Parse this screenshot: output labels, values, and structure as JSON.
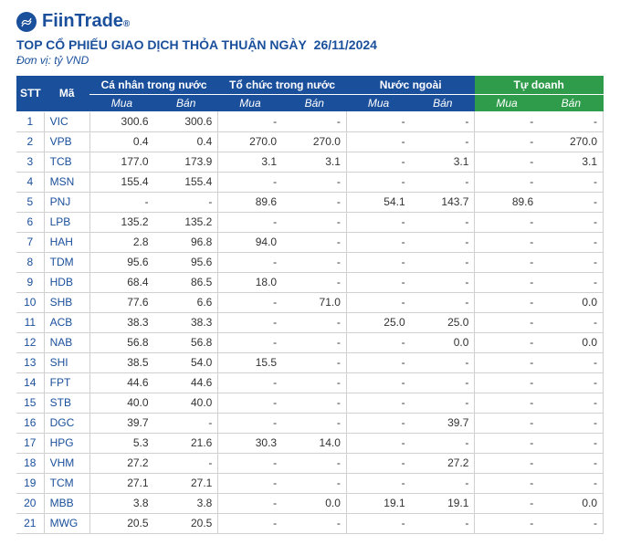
{
  "brand": {
    "name": "FiinTrade",
    "mark_color": "#1a4f9c"
  },
  "title_prefix": "TOP CỔ PHIẾU GIAO DỊCH THỎA THUẬN NGÀY",
  "date": "26/11/2024",
  "unit_label": "Đơn vị: tỷ VND",
  "colors": {
    "header_blue": "#1a4f9c",
    "header_green": "#2e9c4a",
    "row_border": "#d0d0d0",
    "text": "#333333"
  },
  "header": {
    "stt": "STT",
    "code": "Mã",
    "groups": [
      {
        "label": "Cá nhân trong nước",
        "bg": "blue"
      },
      {
        "label": "Tổ chức trong nước",
        "bg": "blue"
      },
      {
        "label": "Nước ngoài",
        "bg": "blue"
      },
      {
        "label": "Tự doanh",
        "bg": "green"
      }
    ],
    "sub_mua": "Mua",
    "sub_ban": "Bán"
  },
  "rows": [
    {
      "stt": 1,
      "code": "VIC",
      "v": [
        "300.6",
        "300.6",
        "-",
        "-",
        "-",
        "-",
        "-",
        "-"
      ]
    },
    {
      "stt": 2,
      "code": "VPB",
      "v": [
        "0.4",
        "0.4",
        "270.0",
        "270.0",
        "-",
        "-",
        "-",
        "270.0"
      ]
    },
    {
      "stt": 3,
      "code": "TCB",
      "v": [
        "177.0",
        "173.9",
        "3.1",
        "3.1",
        "-",
        "3.1",
        "-",
        "3.1"
      ]
    },
    {
      "stt": 4,
      "code": "MSN",
      "v": [
        "155.4",
        "155.4",
        "-",
        "-",
        "-",
        "-",
        "-",
        "-"
      ]
    },
    {
      "stt": 5,
      "code": "PNJ",
      "v": [
        "-",
        "-",
        "89.6",
        "-",
        "54.1",
        "143.7",
        "89.6",
        "-"
      ]
    },
    {
      "stt": 6,
      "code": "LPB",
      "v": [
        "135.2",
        "135.2",
        "-",
        "-",
        "-",
        "-",
        "-",
        "-"
      ]
    },
    {
      "stt": 7,
      "code": "HAH",
      "v": [
        "2.8",
        "96.8",
        "94.0",
        "-",
        "-",
        "-",
        "-",
        "-"
      ]
    },
    {
      "stt": 8,
      "code": "TDM",
      "v": [
        "95.6",
        "95.6",
        "-",
        "-",
        "-",
        "-",
        "-",
        "-"
      ]
    },
    {
      "stt": 9,
      "code": "HDB",
      "v": [
        "68.4",
        "86.5",
        "18.0",
        "-",
        "-",
        "-",
        "-",
        "-"
      ]
    },
    {
      "stt": 10,
      "code": "SHB",
      "v": [
        "77.6",
        "6.6",
        "-",
        "71.0",
        "-",
        "-",
        "-",
        "0.0"
      ]
    },
    {
      "stt": 11,
      "code": "ACB",
      "v": [
        "38.3",
        "38.3",
        "-",
        "-",
        "25.0",
        "25.0",
        "-",
        "-"
      ]
    },
    {
      "stt": 12,
      "code": "NAB",
      "v": [
        "56.8",
        "56.8",
        "-",
        "-",
        "-",
        "0.0",
        "-",
        "0.0"
      ]
    },
    {
      "stt": 13,
      "code": "SHI",
      "v": [
        "38.5",
        "54.0",
        "15.5",
        "-",
        "-",
        "-",
        "-",
        "-"
      ]
    },
    {
      "stt": 14,
      "code": "FPT",
      "v": [
        "44.6",
        "44.6",
        "-",
        "-",
        "-",
        "-",
        "-",
        "-"
      ]
    },
    {
      "stt": 15,
      "code": "STB",
      "v": [
        "40.0",
        "40.0",
        "-",
        "-",
        "-",
        "-",
        "-",
        "-"
      ]
    },
    {
      "stt": 16,
      "code": "DGC",
      "v": [
        "39.7",
        "-",
        "-",
        "-",
        "-",
        "39.7",
        "-",
        "-"
      ]
    },
    {
      "stt": 17,
      "code": "HPG",
      "v": [
        "5.3",
        "21.6",
        "30.3",
        "14.0",
        "-",
        "-",
        "-",
        "-"
      ]
    },
    {
      "stt": 18,
      "code": "VHM",
      "v": [
        "27.2",
        "-",
        "-",
        "-",
        "-",
        "27.2",
        "-",
        "-"
      ]
    },
    {
      "stt": 19,
      "code": "TCM",
      "v": [
        "27.1",
        "27.1",
        "-",
        "-",
        "-",
        "-",
        "-",
        "-"
      ]
    },
    {
      "stt": 20,
      "code": "MBB",
      "v": [
        "3.8",
        "3.8",
        "-",
        "0.0",
        "19.1",
        "19.1",
        "-",
        "0.0"
      ]
    },
    {
      "stt": 21,
      "code": "MWG",
      "v": [
        "20.5",
        "20.5",
        "-",
        "-",
        "-",
        "-",
        "-",
        "-"
      ]
    }
  ]
}
